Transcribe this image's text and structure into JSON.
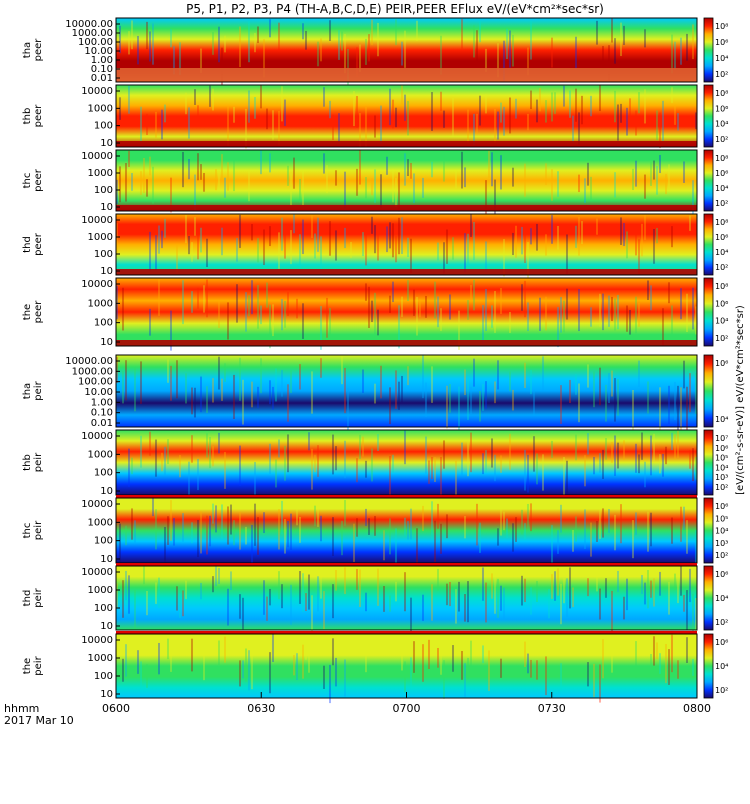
{
  "title": "P5, P1, P2, P3, P4 (TH-A,B,C,D,E) PEIR,PEER EFlux eV/(eV*cm²*sec*sr)",
  "colorbar_label": "[eV/(cm²-s-sr-eV)]  eV/(eV*cm²*sec*sr)",
  "colors": {
    "background": "#ffffff",
    "spectrogram_scale": [
      "#1a0a6b",
      "#0033ff",
      "#00a8ff",
      "#00e0d0",
      "#30e060",
      "#e0f020",
      "#ffb000",
      "#ff2000",
      "#b00000"
    ],
    "overlay_fill": "#e06030",
    "flag_bar_red": "#e00000",
    "flag_bar_yellow": "#ffff00"
  },
  "chart_data": {
    "type": "heatmap",
    "title": "P5, P1, P2, P3, P4 (TH-A,B,C,D,E) PEIR,PEER EFlux eV/(eV*cm²*sec*sr)",
    "xlabel": "hhmm",
    "date_label": "2017 Mar 10",
    "x_ticks": [
      "0600",
      "0630",
      "0700",
      "0730",
      "0800"
    ],
    "xlim": [
      "06:00",
      "08:00"
    ],
    "yscale": "log",
    "panels": [
      {
        "probe": "tha",
        "product": "peer",
        "y_ticks": [
          "10000.00",
          "1000.00",
          "100.00",
          "10.00",
          "1.00",
          "0.10",
          "0.01"
        ],
        "cbar_ticks": [
          "10⁸",
          "10⁶",
          "10⁴",
          "10²"
        ]
      },
      {
        "probe": "thb",
        "product": "peer",
        "y_ticks": [
          "10000",
          "1000",
          "100",
          "10"
        ],
        "cbar_ticks": [
          "10⁸",
          "10⁶",
          "10⁴",
          "10²"
        ]
      },
      {
        "probe": "thc",
        "product": "peer",
        "y_ticks": [
          "10000",
          "1000",
          "100",
          "10"
        ],
        "cbar_ticks": [
          "10⁸",
          "10⁶",
          "10⁴",
          "10²"
        ]
      },
      {
        "probe": "thd",
        "product": "peer",
        "y_ticks": [
          "10000",
          "1000",
          "100",
          "10"
        ],
        "cbar_ticks": [
          "10⁸",
          "10⁶",
          "10⁴",
          "10²"
        ]
      },
      {
        "probe": "the",
        "product": "peer",
        "y_ticks": [
          "10000",
          "1000",
          "100",
          "10"
        ],
        "cbar_ticks": [
          "10⁸",
          "10⁶",
          "10⁴",
          "10²"
        ]
      },
      {
        "probe": "tha",
        "product": "peir",
        "y_ticks": [
          "10000.00",
          "1000.00",
          "100.00",
          "10.00",
          "1.00",
          "0.10",
          "0.01"
        ],
        "cbar_ticks": [
          "10⁶",
          "10⁴"
        ]
      },
      {
        "probe": "thb",
        "product": "peir",
        "y_ticks": [
          "10000",
          "1000",
          "100",
          "10"
        ],
        "cbar_ticks": [
          "10⁷",
          "10⁶",
          "10⁵",
          "10⁴",
          "10³",
          "10²"
        ]
      },
      {
        "probe": "thc",
        "product": "peir",
        "y_ticks": [
          "10000",
          "1000",
          "100",
          "10"
        ],
        "cbar_ticks": [
          "10⁶",
          "10⁵",
          "10⁴",
          "10³",
          "10²"
        ]
      },
      {
        "probe": "thd",
        "product": "peir",
        "y_ticks": [
          "10000",
          "1000",
          "100",
          "10"
        ],
        "cbar_ticks": [
          "10⁶",
          "10⁴",
          "10²"
        ]
      },
      {
        "probe": "the",
        "product": "peir",
        "y_ticks": [
          "10000",
          "1000",
          "100",
          "10"
        ],
        "cbar_ticks": [
          "10⁶",
          "10⁴",
          "10²"
        ]
      }
    ]
  }
}
